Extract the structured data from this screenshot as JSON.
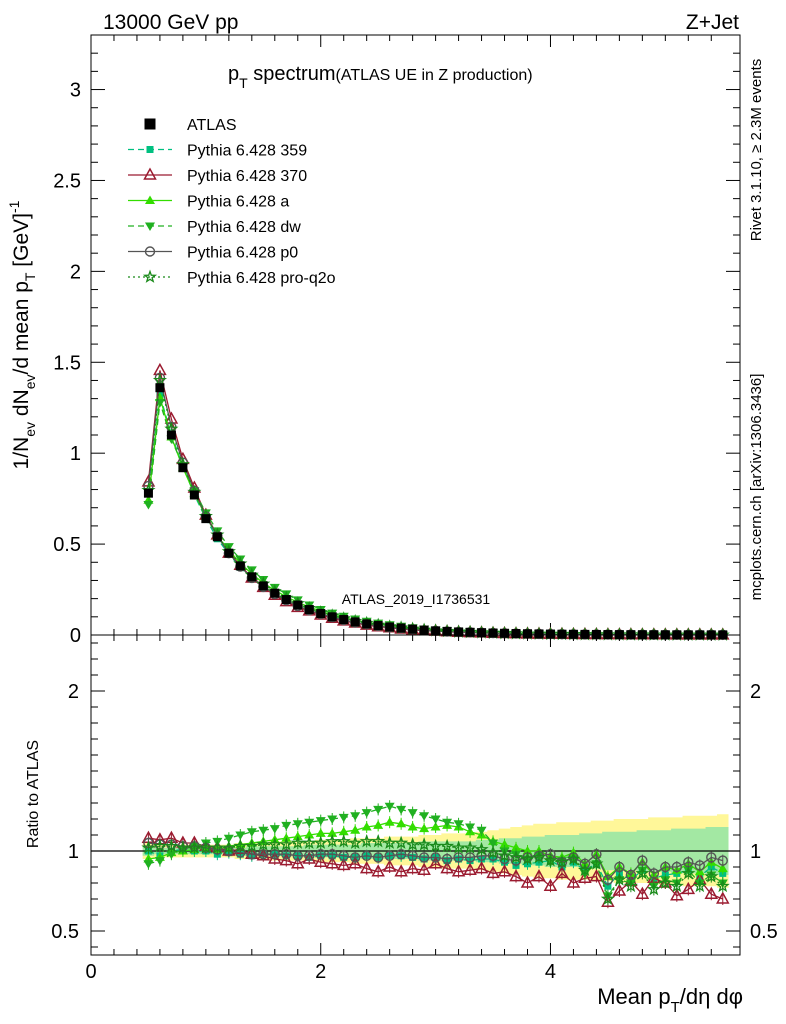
{
  "header": {
    "left": "13000 GeV pp",
    "right": "Z+Jet"
  },
  "title": {
    "main": "p",
    "sub": "T",
    "rest": " spectrum",
    "paren": "(ATLAS UE in Z production)"
  },
  "side_labels": {
    "rivet": "Rivet 3.1.10, ≥ 2.3M events",
    "mcplots": "mcplots.cern.ch [arXiv:1306.3436]"
  },
  "watermark": "ATLAS_2019_I1736531",
  "ylabel_main": "1/N_ev dN_ev/d mean p_T [GeV]^-1",
  "ylabel_ratio": "Ratio to ATLAS",
  "xlabel": "Mean p_T/dη dφ",
  "legend": [
    {
      "name": "ATLAS",
      "color": "#000000",
      "marker": "square",
      "dash": "none"
    },
    {
      "name": "Pythia 6.428 359",
      "color": "#00c080",
      "marker": "smallsquare",
      "dash": "dashed"
    },
    {
      "name": "Pythia 6.428 370",
      "color": "#9b1b30",
      "marker": "open-triangle",
      "dash": "solid"
    },
    {
      "name": "Pythia 6.428 a",
      "color": "#33dd00",
      "marker": "triangle-up",
      "dash": "solid"
    },
    {
      "name": "Pythia 6.428 dw",
      "color": "#20b020",
      "marker": "triangle-down",
      "dash": "dashed"
    },
    {
      "name": "Pythia 6.428 p0",
      "color": "#555555",
      "marker": "open-circle",
      "dash": "solid"
    },
    {
      "name": "Pythia 6.428 pro-q2o",
      "color": "#1a8a1a",
      "marker": "star",
      "dash": "dotted"
    }
  ],
  "chart_data": {
    "type": "line",
    "xlim": [
      0,
      5.65
    ],
    "ylim_main": [
      0,
      3.3
    ],
    "ylim_ratio": [
      0.35,
      2.35
    ],
    "x_ticks": [
      "0",
      "2",
      "4"
    ],
    "x_tick_values": [
      0,
      2,
      4
    ],
    "y_ticks_main": [
      "0",
      "0.5",
      "1",
      "1.5",
      "2",
      "2.5",
      "3"
    ],
    "y_tick_values_main": [
      0,
      0.5,
      1,
      1.5,
      2,
      2.5,
      3
    ],
    "y_ticks_ratio": [
      "0.5",
      "1",
      "2"
    ],
    "y_tick_values_ratio": [
      0.5,
      1,
      2
    ],
    "x": [
      0.5,
      0.6,
      0.7,
      0.8,
      0.9,
      1.0,
      1.1,
      1.2,
      1.3,
      1.4,
      1.5,
      1.6,
      1.7,
      1.8,
      1.9,
      2.0,
      2.1,
      2.2,
      2.3,
      2.4,
      2.5,
      2.6,
      2.7,
      2.8,
      2.9,
      3.0,
      3.1,
      3.2,
      3.3,
      3.4,
      3.5,
      3.6,
      3.7,
      3.8,
      3.9,
      4.0,
      4.1,
      4.2,
      4.3,
      4.4,
      4.5,
      4.6,
      4.7,
      4.8,
      4.9,
      5.0,
      5.1,
      5.2,
      5.3,
      5.4,
      5.5
    ],
    "atlas": [
      0.78,
      1.36,
      1.1,
      0.92,
      0.77,
      0.64,
      0.54,
      0.45,
      0.38,
      0.32,
      0.27,
      0.23,
      0.195,
      0.165,
      0.14,
      0.118,
      0.1,
      0.085,
      0.072,
      0.061,
      0.052,
      0.044,
      0.038,
      0.032,
      0.027,
      0.023,
      0.02,
      0.017,
      0.015,
      0.013,
      0.011,
      0.0095,
      0.0082,
      0.007,
      0.006,
      0.0052,
      0.0045,
      0.0039,
      0.0034,
      0.003,
      0.0026,
      0.0023,
      0.002,
      0.0018,
      0.0016,
      0.0014,
      0.0012,
      0.0011,
      0.001,
      0.0009,
      0.0008
    ],
    "band_inner": [
      0.03,
      0.02,
      0.02,
      0.02,
      0.02,
      0.02,
      0.02,
      0.02,
      0.02,
      0.03,
      0.03,
      0.03,
      0.03,
      0.03,
      0.04,
      0.04,
      0.04,
      0.04,
      0.04,
      0.05,
      0.05,
      0.05,
      0.05,
      0.05,
      0.06,
      0.06,
      0.06,
      0.06,
      0.06,
      0.07,
      0.07,
      0.08,
      0.08,
      0.09,
      0.09,
      0.1,
      0.1,
      0.1,
      0.11,
      0.11,
      0.12,
      0.12,
      0.12,
      0.13,
      0.13,
      0.13,
      0.14,
      0.14,
      0.14,
      0.15,
      0.15
    ],
    "band_outer": [
      0.05,
      0.04,
      0.04,
      0.04,
      0.04,
      0.04,
      0.04,
      0.04,
      0.05,
      0.05,
      0.05,
      0.06,
      0.06,
      0.06,
      0.06,
      0.07,
      0.07,
      0.07,
      0.08,
      0.08,
      0.08,
      0.09,
      0.09,
      0.09,
      0.1,
      0.1,
      0.11,
      0.11,
      0.11,
      0.12,
      0.13,
      0.14,
      0.15,
      0.16,
      0.17,
      0.17,
      0.18,
      0.18,
      0.18,
      0.19,
      0.19,
      0.2,
      0.2,
      0.2,
      0.21,
      0.21,
      0.21,
      0.22,
      0.22,
      0.22,
      0.23
    ],
    "series": [
      {
        "name": "Pythia 6.428 359",
        "ratio": [
          1.0,
          0.97,
          1.0,
          1.01,
          1.0,
          1.0,
          0.98,
          0.99,
          0.98,
          0.97,
          0.98,
          0.98,
          0.97,
          0.97,
          0.96,
          0.97,
          0.97,
          0.96,
          0.96,
          0.97,
          0.96,
          0.97,
          0.97,
          0.96,
          0.95,
          0.96,
          0.94,
          0.95,
          0.94,
          0.95,
          0.95,
          0.93,
          0.91,
          0.92,
          0.93,
          0.94,
          0.9,
          0.93,
          0.88,
          0.92,
          0.78,
          0.86,
          0.82,
          0.88,
          0.83,
          0.85,
          0.86,
          0.88,
          0.84,
          0.9,
          0.86
        ]
      },
      {
        "name": "Pythia 6.428 370",
        "ratio": [
          1.08,
          1.07,
          1.08,
          1.05,
          1.05,
          1.03,
          1.02,
          1.0,
          1.01,
          0.98,
          0.97,
          0.95,
          0.94,
          0.92,
          0.95,
          0.93,
          0.92,
          0.91,
          0.92,
          0.89,
          0.87,
          0.9,
          0.87,
          0.89,
          0.88,
          0.92,
          0.89,
          0.87,
          0.88,
          0.89,
          0.86,
          0.87,
          0.84,
          0.8,
          0.84,
          0.78,
          0.86,
          0.8,
          0.83,
          0.84,
          0.68,
          0.75,
          0.81,
          0.73,
          0.83,
          0.8,
          0.72,
          0.76,
          0.82,
          0.73,
          0.7
        ]
      },
      {
        "name": "Pythia 6.428 a",
        "ratio": [
          0.95,
          0.96,
          0.99,
          1.0,
          1.01,
          1.02,
          1.01,
          1.03,
          1.04,
          1.05,
          1.06,
          1.07,
          1.08,
          1.09,
          1.1,
          1.11,
          1.11,
          1.12,
          1.13,
          1.15,
          1.16,
          1.18,
          1.17,
          1.15,
          1.14,
          1.15,
          1.16,
          1.15,
          1.12,
          1.1,
          1.06,
          1.04,
          1.02,
          1.0,
          1.0,
          0.97,
          0.96,
          0.99,
          0.92,
          0.98,
          0.84,
          0.9,
          0.86,
          0.93,
          0.85,
          0.9,
          0.88,
          0.92,
          0.87,
          0.93,
          0.89
        ]
      },
      {
        "name": "Pythia 6.428 dw",
        "ratio": [
          0.92,
          0.94,
          0.98,
          1.01,
          1.03,
          1.05,
          1.06,
          1.08,
          1.1,
          1.12,
          1.13,
          1.14,
          1.16,
          1.17,
          1.18,
          1.19,
          1.2,
          1.21,
          1.22,
          1.24,
          1.26,
          1.28,
          1.26,
          1.24,
          1.22,
          1.2,
          1.18,
          1.17,
          1.15,
          1.13,
          1.05,
          1.0,
          0.98,
          0.95,
          0.97,
          0.93,
          0.94,
          0.95,
          0.86,
          0.92,
          0.72,
          0.82,
          0.8,
          0.88,
          0.78,
          0.82,
          0.8,
          0.88,
          0.8,
          0.85,
          0.8
        ]
      },
      {
        "name": "Pythia 6.428 p0",
        "ratio": [
          1.05,
          1.04,
          1.04,
          1.03,
          1.03,
          1.02,
          1.01,
          1.0,
          0.99,
          0.98,
          0.98,
          0.98,
          0.98,
          0.97,
          0.97,
          0.98,
          0.98,
          0.97,
          0.96,
          0.97,
          0.96,
          0.97,
          0.98,
          0.97,
          0.96,
          0.96,
          0.95,
          0.96,
          0.96,
          0.97,
          0.97,
          0.95,
          0.94,
          0.96,
          0.97,
          0.98,
          0.93,
          0.96,
          0.92,
          0.98,
          0.82,
          0.9,
          0.85,
          0.94,
          0.86,
          0.9,
          0.9,
          0.93,
          0.91,
          0.96,
          0.94
        ]
      },
      {
        "name": "Pythia 6.428 pro-q2o",
        "ratio": [
          1.02,
          1.03,
          1.03,
          1.02,
          1.02,
          1.02,
          1.02,
          1.02,
          1.03,
          1.03,
          1.04,
          1.04,
          1.04,
          1.05,
          1.05,
          1.05,
          1.06,
          1.06,
          1.05,
          1.06,
          1.06,
          1.05,
          1.05,
          1.04,
          1.04,
          1.03,
          1.03,
          1.02,
          1.02,
          1.01,
          0.99,
          0.97,
          0.96,
          0.95,
          0.96,
          0.94,
          0.93,
          0.95,
          0.88,
          0.92,
          0.7,
          0.82,
          0.78,
          0.86,
          0.76,
          0.8,
          0.78,
          0.86,
          0.78,
          0.84,
          0.78
        ]
      }
    ]
  }
}
